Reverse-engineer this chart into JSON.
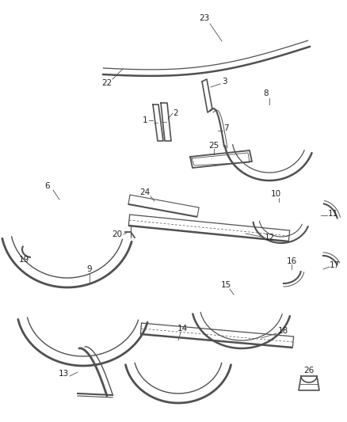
{
  "bg_color": "#ffffff",
  "line_color": "#505050",
  "label_color": "#222222",
  "label_fs": 7.5
}
